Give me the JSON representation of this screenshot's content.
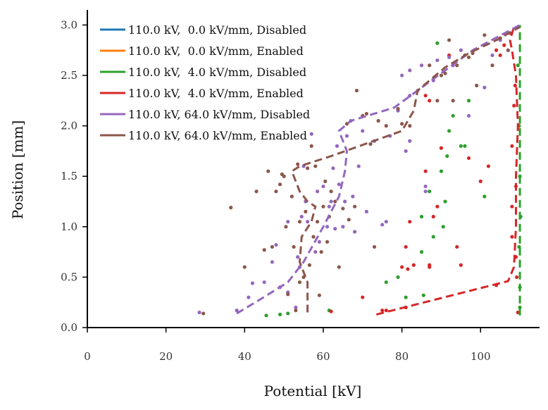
{
  "chart_data": {
    "type": "scatter",
    "xlabel": "Potential [kV]",
    "ylabel": "Position [mm]",
    "xlim": [
      0,
      115
    ],
    "ylim": [
      0,
      3.15
    ],
    "x_ticks": [
      0,
      20,
      40,
      60,
      80,
      100
    ],
    "x_tick_labels": [
      "0",
      "20",
      "40",
      "60",
      "80",
      "100"
    ],
    "y_ticks": [
      0.0,
      0.5,
      1.0,
      1.5,
      2.0,
      2.5,
      3.0
    ],
    "y_tick_labels": [
      "0.0",
      "0.5",
      "1.0",
      "1.5",
      "2.0",
      "2.5",
      "3.0"
    ],
    "legend_position": "top-left",
    "series": [
      {
        "name": "110.0 kV,  0.0 kV/mm, Disabled",
        "color": "#1f77b4",
        "line": [],
        "points": []
      },
      {
        "name": "110.0 kV,  0.0 kV/mm, Enabled",
        "color": "#ff7f0e",
        "line": [],
        "points": []
      },
      {
        "name": "110.0 kV,  4.0 kV/mm, Disabled",
        "color": "#2ca02c",
        "line": [
          [
            110,
            0.12
          ],
          [
            110,
            3.0
          ]
        ],
        "points": [
          [
            45.5,
            0.12
          ],
          [
            49,
            0.13
          ],
          [
            51,
            0.14
          ],
          [
            61.5,
            0.17
          ],
          [
            76,
            0.45
          ],
          [
            79,
            0.5
          ],
          [
            81,
            0.3
          ],
          [
            85,
            0.75
          ],
          [
            85,
            1.1
          ],
          [
            85.5,
            0.32
          ],
          [
            87,
            1.35
          ],
          [
            88,
            0.9
          ],
          [
            89,
            2.82
          ],
          [
            90,
            1.55
          ],
          [
            90.5,
            1.0
          ],
          [
            91,
            1.25
          ],
          [
            91.5,
            1.7
          ],
          [
            92,
            1.95
          ],
          [
            93,
            2.1
          ],
          [
            95,
            1.8
          ],
          [
            96,
            1.8
          ],
          [
            97,
            2.25
          ],
          [
            101,
            1.3
          ],
          [
            109.8,
            2.0
          ],
          [
            110,
            1.5
          ],
          [
            110,
            0.4
          ],
          [
            110,
            0.2
          ],
          [
            109.5,
            2.6
          ],
          [
            110.2,
            1.1
          ],
          [
            109.8,
            0.8
          ]
        ]
      },
      {
        "name": "110.0 kV,  4.0 kV/mm, Enabled",
        "color": "#d62728",
        "line": [
          [
            73.5,
            0.13
          ],
          [
            107,
            0.46
          ],
          [
            108.5,
            0.6
          ],
          [
            109,
            1.0
          ],
          [
            109,
            1.5
          ],
          [
            109.5,
            2.0
          ],
          [
            109,
            2.5
          ],
          [
            108,
            2.75
          ],
          [
            107.5,
            2.85
          ],
          [
            108.5,
            2.98
          ]
        ],
        "points": [
          [
            62,
            0.16
          ],
          [
            70,
            0.3
          ],
          [
            75,
            0.17
          ],
          [
            76,
            0.17
          ],
          [
            80,
            0.6
          ],
          [
            81,
            0.2
          ],
          [
            81,
            0.8
          ],
          [
            81.5,
            0.58
          ],
          [
            82,
            1.05
          ],
          [
            83,
            0.62
          ],
          [
            86,
            1.55
          ],
          [
            86,
            2.3
          ],
          [
            87,
            0.6
          ],
          [
            87,
            0.62
          ],
          [
            87,
            2.25
          ],
          [
            88,
            1.1
          ],
          [
            89,
            1.2
          ],
          [
            90,
            1.78
          ],
          [
            92,
            2.7
          ],
          [
            94,
            0.8
          ],
          [
            95,
            0.62
          ],
          [
            97,
            1.68
          ],
          [
            100,
            1.45
          ],
          [
            102,
            1.6
          ],
          [
            104,
            2.75
          ],
          [
            104,
            0.42
          ],
          [
            105,
            2.7
          ],
          [
            106,
            2.8
          ],
          [
            107.5,
            2.92
          ],
          [
            108,
            1.8
          ],
          [
            108,
            1.2
          ],
          [
            108,
            0.9
          ],
          [
            108.5,
            2.2
          ],
          [
            109,
            1.4
          ],
          [
            109,
            0.7
          ],
          [
            109.2,
            0.5
          ],
          [
            108.8,
            2.4
          ],
          [
            109.5,
            0.15
          ]
        ]
      },
      {
        "name": "110.0 kV, 64.0 kV/mm, Disabled",
        "color": "#9467bd",
        "line": [
          [
            38,
            0.14
          ],
          [
            44,
            0.28
          ],
          [
            51,
            0.45
          ],
          [
            55,
            0.65
          ],
          [
            60,
            1.0
          ],
          [
            64,
            1.3
          ],
          [
            65.5,
            1.55
          ],
          [
            66,
            1.75
          ],
          [
            64,
            1.95
          ],
          [
            67,
            2.05
          ],
          [
            78,
            2.18
          ],
          [
            84,
            2.35
          ],
          [
            98,
            2.75
          ],
          [
            110,
            3.0
          ]
        ],
        "points": [
          [
            28.5,
            0.15
          ],
          [
            38,
            0.17
          ],
          [
            41,
            0.3
          ],
          [
            42,
            0.44
          ],
          [
            45,
            0.45
          ],
          [
            47,
            0.65
          ],
          [
            48,
            0.82
          ],
          [
            49,
            0.4
          ],
          [
            51,
            1.05
          ],
          [
            51,
            0.35
          ],
          [
            53,
            0.2
          ],
          [
            53.5,
            0.7
          ],
          [
            54,
            0.6
          ],
          [
            54.5,
            1.1
          ],
          [
            55,
            1.6
          ],
          [
            55.5,
            1.25
          ],
          [
            56,
            1.05
          ],
          [
            57,
            1.92
          ],
          [
            58,
            0.75
          ],
          [
            58.5,
            1.35
          ],
          [
            59,
            0.85
          ],
          [
            60,
            1.4
          ],
          [
            61,
            1.0
          ],
          [
            61.5,
            1.2
          ],
          [
            62,
            1.25
          ],
          [
            62.5,
            1.58
          ],
          [
            63,
            0.98
          ],
          [
            63.5,
            1.8
          ],
          [
            64,
            1.42
          ],
          [
            65,
            1.0
          ],
          [
            65.5,
            1.25
          ],
          [
            66,
            1.9
          ],
          [
            67,
            2.05
          ],
          [
            67.5,
            1.3
          ],
          [
            68,
            0.95
          ],
          [
            69,
            1.6
          ],
          [
            70,
            1.95
          ],
          [
            71,
            1.15
          ],
          [
            73,
            1.85
          ],
          [
            75,
            1.02
          ],
          [
            76,
            1.05
          ],
          [
            77,
            1.9
          ],
          [
            79,
            2.15
          ],
          [
            80,
            2.5
          ],
          [
            81,
            1.75
          ],
          [
            82,
            1.85
          ],
          [
            82,
            2.3
          ],
          [
            82,
            2.55
          ],
          [
            84,
            2.35
          ],
          [
            85,
            2.6
          ],
          [
            86,
            1.35
          ],
          [
            86,
            1.4
          ],
          [
            88,
            2.45
          ],
          [
            89,
            2.65
          ],
          [
            92,
            2.68
          ],
          [
            93,
            2.6
          ],
          [
            95,
            2.75
          ],
          [
            97,
            2.1
          ],
          [
            101,
            2.38
          ],
          [
            103,
            2.7
          ],
          [
            105,
            2.85
          ]
        ]
      },
      {
        "name": "110.0 kV, 64.0 kV/mm, Enabled",
        "color": "#8c564b",
        "line": [
          [
            56,
            0.15
          ],
          [
            56,
            0.45
          ],
          [
            54,
            0.65
          ],
          [
            54.5,
            0.9
          ],
          [
            57,
            1.05
          ],
          [
            58,
            1.2
          ],
          [
            56,
            1.25
          ],
          [
            54,
            1.35
          ],
          [
            52,
            1.55
          ],
          [
            54,
            1.6
          ],
          [
            62,
            1.7
          ],
          [
            80,
            1.95
          ],
          [
            83,
            2.15
          ],
          [
            84,
            2.35
          ],
          [
            91,
            2.58
          ],
          [
            97,
            2.72
          ],
          [
            104,
            2.85
          ],
          [
            110,
            2.98
          ]
        ],
        "points": [
          [
            29.5,
            0.14
          ],
          [
            36.5,
            1.19
          ],
          [
            40,
            0.6
          ],
          [
            43,
            1.35
          ],
          [
            45,
            0.77
          ],
          [
            46,
            1.55
          ],
          [
            47,
            0.8
          ],
          [
            48,
            1.35
          ],
          [
            49,
            1.42
          ],
          [
            49.5,
            1.52
          ],
          [
            50,
            1.5
          ],
          [
            50.5,
            1.0
          ],
          [
            51,
            0.33
          ],
          [
            52,
            1.3
          ],
          [
            52.5,
            0.8
          ],
          [
            53,
            0.17
          ],
          [
            53.5,
            1.62
          ],
          [
            54,
            0.45
          ],
          [
            54,
            1.05
          ],
          [
            55,
            0.5
          ],
          [
            55.5,
            1.15
          ],
          [
            56,
            1.58
          ],
          [
            56.5,
            0.62
          ],
          [
            57,
            1.8
          ],
          [
            57.5,
            0.9
          ],
          [
            58,
            1.6
          ],
          [
            58.5,
            1.05
          ],
          [
            59,
            0.32
          ],
          [
            59.5,
            0.75
          ],
          [
            60,
            1.2
          ],
          [
            60.5,
            1.45
          ],
          [
            61,
            0.85
          ],
          [
            61.5,
            1.1
          ],
          [
            62,
            1.35
          ],
          [
            63,
            1.25
          ],
          [
            64,
            0.6
          ],
          [
            65,
            1.18
          ],
          [
            66,
            2.02
          ],
          [
            66.5,
            1.07
          ],
          [
            68,
            1.2
          ],
          [
            68.5,
            2.35
          ],
          [
            70,
            2.1
          ],
          [
            71,
            2.12
          ],
          [
            72,
            1.82
          ],
          [
            73,
            0.8
          ],
          [
            74,
            2.05
          ],
          [
            76,
            2.0
          ],
          [
            79,
            2.17
          ],
          [
            80,
            2.02
          ],
          [
            82,
            2.0
          ],
          [
            87,
            2.6
          ],
          [
            89,
            2.25
          ],
          [
            90,
            2.5
          ],
          [
            91,
            2.52
          ],
          [
            92,
            2.85
          ],
          [
            93,
            2.25
          ],
          [
            94,
            2.6
          ],
          [
            96,
            2.7
          ],
          [
            97,
            2.68
          ],
          [
            98,
            2.72
          ],
          [
            99,
            2.4
          ],
          [
            101,
            2.9
          ],
          [
            103,
            2.6
          ],
          [
            105,
            2.87
          ],
          [
            107,
            2.75
          ]
        ]
      }
    ]
  }
}
